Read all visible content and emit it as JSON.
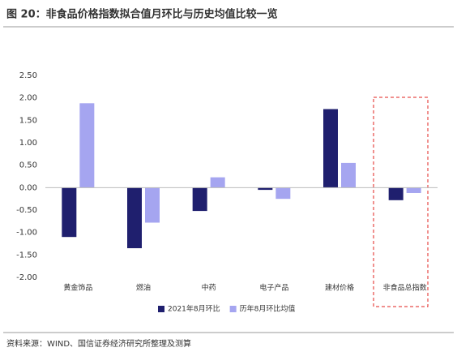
{
  "chart_data": {
    "type": "bar",
    "title": "图 20：非食品价格指数拟合值月环比与历史均值比较一览",
    "categories": [
      "黄金饰品",
      "燃油",
      "中药",
      "电子产品",
      "建材价格",
      "非食品总指数"
    ],
    "series": [
      {
        "name": "2021年8月环比",
        "color": "#1f1f6e",
        "values": [
          -1.1,
          -1.35,
          -0.52,
          -0.05,
          1.75,
          -0.28
        ]
      },
      {
        "name": "历年8月环比均值",
        "color": "#a5a5f0",
        "values": [
          1.88,
          -0.78,
          0.23,
          -0.25,
          0.55,
          -0.12
        ]
      }
    ],
    "ylim": [
      -2,
      2.5
    ],
    "yticks": [
      {
        "value": -2,
        "label": "-2.00"
      },
      {
        "value": -1.5,
        "label": "-1.50"
      },
      {
        "value": -1,
        "label": "-1.00"
      },
      {
        "value": -0.5,
        "label": "-0.50"
      },
      {
        "value": 0,
        "label": "0.00"
      },
      {
        "value": 0.5,
        "label": "0.50"
      },
      {
        "value": 1,
        "label": "1.00"
      },
      {
        "value": 1.5,
        "label": "1.50"
      },
      {
        "value": 2,
        "label": "2.00"
      },
      {
        "value": 2.5,
        "label": "2.50"
      }
    ],
    "grid": false,
    "legend": "bottom",
    "source": "资料来源：WIND、国信证券经济研究所整理及测算"
  }
}
